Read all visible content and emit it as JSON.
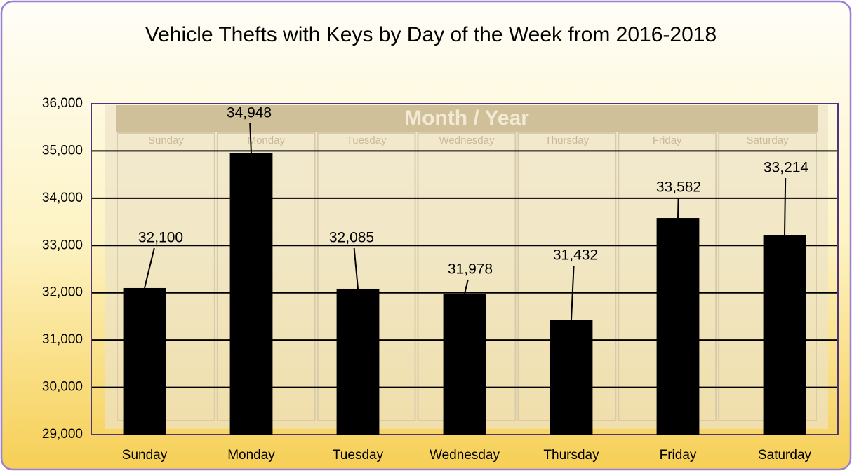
{
  "chart_data": {
    "type": "bar",
    "title": "Vehicle Thefts with Keys by Day of the Week from 2016-2018",
    "categories": [
      "Sunday",
      "Monday",
      "Tuesday",
      "Wednesday",
      "Thursday",
      "Friday",
      "Saturday"
    ],
    "values": [
      32100,
      34948,
      32085,
      31978,
      31432,
      33582,
      33214
    ],
    "value_labels": [
      "32,100",
      "34,948",
      "32,085",
      "31,978",
      "31,432",
      "33,582",
      "33,214"
    ],
    "color": "#000000",
    "ylim": [
      29000,
      36000
    ],
    "yticks": [
      {
        "value": 29000,
        "label": "29,000"
      },
      {
        "value": 30000,
        "label": "30,000"
      },
      {
        "value": 31000,
        "label": "31,000"
      },
      {
        "value": 32000,
        "label": "32,000"
      },
      {
        "value": 33000,
        "label": "33,000"
      },
      {
        "value": 34000,
        "label": "34,000"
      },
      {
        "value": 35000,
        "label": "35,000"
      },
      {
        "value": 36000,
        "label": "36,000"
      }
    ],
    "grid": true,
    "background_image": {
      "header": "Month / Year",
      "days": [
        "Sunday",
        "Monday",
        "Tuesday",
        "Wednesday",
        "Thursday",
        "Friday",
        "Saturday"
      ]
    }
  }
}
